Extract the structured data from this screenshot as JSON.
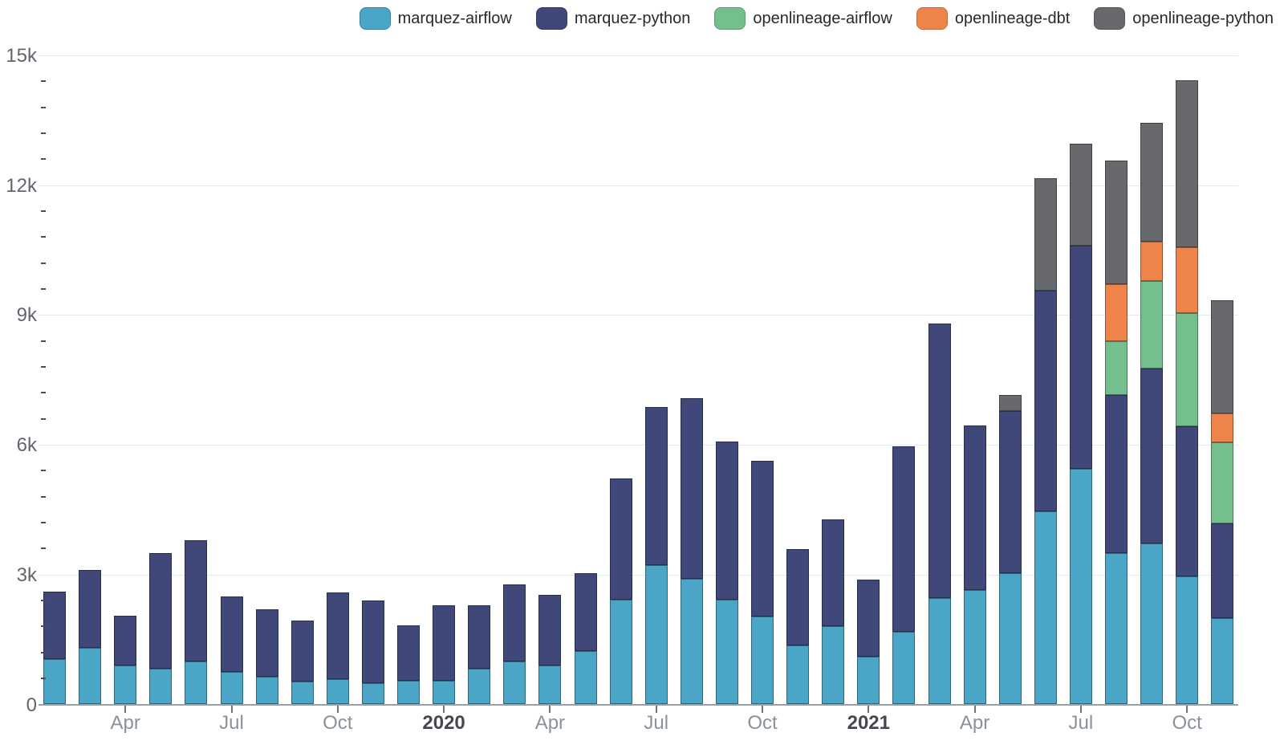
{
  "chart_data": {
    "type": "bar",
    "stacked": true,
    "title": "",
    "xlabel": "",
    "ylabel": "",
    "grid": true,
    "legend_position": "top-right",
    "ylim": [
      0,
      15000
    ],
    "y_major_ticks": [
      {
        "value": 0,
        "label": "0"
      },
      {
        "value": 3000,
        "label": "3k"
      },
      {
        "value": 6000,
        "label": "6k"
      },
      {
        "value": 9000,
        "label": "9k"
      },
      {
        "value": 12000,
        "label": "12k"
      },
      {
        "value": 15000,
        "label": "15k"
      }
    ],
    "y_minor_step": 600,
    "x": [
      "Feb 2019",
      "Mar 2019",
      "Apr 2019",
      "May 2019",
      "Jun 2019",
      "Jul 2019",
      "Aug 2019",
      "Sep 2019",
      "Oct 2019",
      "Nov 2019",
      "Dec 2019",
      "Jan 2020",
      "Feb 2020",
      "Mar 2020",
      "Apr 2020",
      "May 2020",
      "Jun 2020",
      "Jul 2020",
      "Aug 2020",
      "Sep 2020",
      "Oct 2020",
      "Nov 2020",
      "Dec 2020",
      "Jan 2021",
      "Feb 2021",
      "Mar 2021",
      "Apr 2021",
      "May 2021",
      "Jun 2021",
      "Jul 2021",
      "Aug 2021",
      "Sep 2021",
      "Oct 2021",
      "Nov 2021"
    ],
    "x_ticks": [
      {
        "index": 2,
        "label": "Apr",
        "bold": false
      },
      {
        "index": 5,
        "label": "Jul",
        "bold": false
      },
      {
        "index": 8,
        "label": "Oct",
        "bold": false
      },
      {
        "index": 11,
        "label": "2020",
        "bold": true
      },
      {
        "index": 14,
        "label": "Apr",
        "bold": false
      },
      {
        "index": 17,
        "label": "Jul",
        "bold": false
      },
      {
        "index": 20,
        "label": "Oct",
        "bold": false
      },
      {
        "index": 23,
        "label": "2021",
        "bold": true
      },
      {
        "index": 26,
        "label": "Apr",
        "bold": false
      },
      {
        "index": 29,
        "label": "Jul",
        "bold": false
      },
      {
        "index": 32,
        "label": "Oct",
        "bold": false
      }
    ],
    "series": [
      {
        "name": "marquez-airflow",
        "color": "#4aa5c6",
        "values": [
          1050,
          1300,
          900,
          830,
          1000,
          750,
          640,
          530,
          590,
          500,
          550,
          550,
          820,
          990,
          900,
          1240,
          2420,
          3220,
          2900,
          2430,
          2040,
          1360,
          1810,
          1110,
          1670,
          2460,
          2640,
          3030,
          4460,
          5440,
          3500,
          3720,
          2950,
          2000
        ]
      },
      {
        "name": "marquez-python",
        "color": "#3f4879",
        "values": [
          1550,
          1800,
          1150,
          2670,
          2800,
          1750,
          1560,
          1400,
          2000,
          1900,
          1280,
          1750,
          1480,
          1780,
          1640,
          1790,
          2810,
          3650,
          4170,
          3650,
          3600,
          2230,
          2460,
          1770,
          4300,
          6340,
          3800,
          3760,
          5110,
          5160,
          3650,
          4050,
          3470,
          2180
        ]
      },
      {
        "name": "openlineage-airflow",
        "color": "#74bf8d",
        "values": [
          0,
          0,
          0,
          0,
          0,
          0,
          0,
          0,
          0,
          0,
          0,
          0,
          0,
          0,
          0,
          0,
          0,
          0,
          0,
          0,
          0,
          0,
          0,
          0,
          0,
          0,
          0,
          0,
          0,
          0,
          1240,
          2010,
          2630,
          1870
        ]
      },
      {
        "name": "openlineage-dbt",
        "color": "#ee8449",
        "values": [
          0,
          0,
          0,
          0,
          0,
          0,
          0,
          0,
          0,
          0,
          0,
          0,
          0,
          0,
          0,
          0,
          0,
          0,
          0,
          0,
          0,
          0,
          0,
          0,
          0,
          0,
          0,
          0,
          0,
          0,
          1320,
          910,
          1520,
          680
        ]
      },
      {
        "name": "openlineage-python",
        "color": "#67696c",
        "values": [
          0,
          0,
          0,
          0,
          0,
          0,
          0,
          0,
          0,
          0,
          0,
          0,
          0,
          0,
          0,
          0,
          0,
          0,
          0,
          0,
          0,
          0,
          0,
          0,
          0,
          0,
          0,
          360,
          2600,
          2350,
          2860,
          2750,
          3850,
          2610
        ]
      }
    ]
  },
  "colors": {
    "background": "#ffffff",
    "gridline": "#e3e8f2",
    "axis_line": "#9aa0a6",
    "y_label": "#61666d",
    "month_label": "#8b919b",
    "year_label": "#45494f",
    "legend_text": "#27292b"
  }
}
